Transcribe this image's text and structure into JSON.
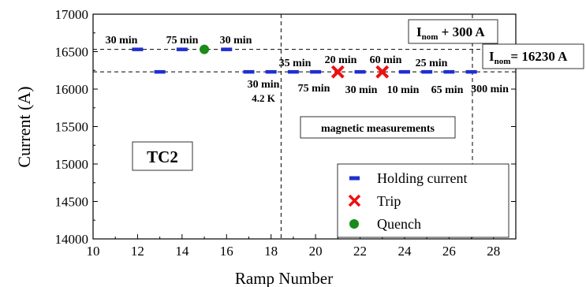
{
  "chart_data": {
    "type": "scatter",
    "title": "",
    "xlabel": "Ramp Number",
    "ylabel": "Current (A)",
    "xlim": [
      10,
      29
    ],
    "ylim": [
      14000,
      17000
    ],
    "xticks": [
      10,
      12,
      14,
      16,
      18,
      20,
      22,
      24,
      26,
      28
    ],
    "yticks": [
      14000,
      14500,
      15000,
      15500,
      16000,
      16500,
      17000
    ],
    "grid": false,
    "legend_position": "bottom-right",
    "series": [
      {
        "name": "Holding current",
        "marker": "dash",
        "color": "#1f2fd0",
        "points": [
          {
            "x": 12,
            "y": 16530
          },
          {
            "x": 13,
            "y": 16230
          },
          {
            "x": 14,
            "y": 16530
          },
          {
            "x": 16,
            "y": 16530
          },
          {
            "x": 17,
            "y": 16230
          },
          {
            "x": 18,
            "y": 16230
          },
          {
            "x": 19,
            "y": 16230
          },
          {
            "x": 20,
            "y": 16230
          },
          {
            "x": 22,
            "y": 16230
          },
          {
            "x": 24,
            "y": 16230
          },
          {
            "x": 25,
            "y": 16230
          },
          {
            "x": 26,
            "y": 16230
          },
          {
            "x": 27,
            "y": 16230
          }
        ]
      },
      {
        "name": "Trip",
        "marker": "x",
        "color": "#ee1111",
        "points": [
          {
            "x": 21,
            "y": 16230
          },
          {
            "x": 23,
            "y": 16230
          }
        ]
      },
      {
        "name": "Quench",
        "marker": "circle",
        "color": "#1a8a1a",
        "points": [
          {
            "x": 15,
            "y": 16530
          }
        ]
      }
    ],
    "reference_lines": {
      "horizontal": [
        16530,
        16230
      ],
      "vertical": [
        18.45,
        27.05
      ]
    },
    "annotations": {
      "upper_labels": [
        "30 min",
        "75 min",
        "30 min"
      ],
      "middle_labels": [
        "35 min",
        "20 min",
        "60 min",
        "25 min"
      ],
      "lower_labels": [
        "30 min",
        "75 min",
        "30 min",
        "10 min",
        "65 min",
        "300 min"
      ],
      "lower_sub_label": "4.2 K",
      "inom_plus_main": "I",
      "inom_plus_sub": "nom",
      "inom_plus_rest": " + 300 A",
      "inom_main": "I",
      "inom_sub": "nom",
      "inom_rest": "= 16230 A",
      "magnetic": "magnetic measurements",
      "tc2": "TC2"
    }
  }
}
